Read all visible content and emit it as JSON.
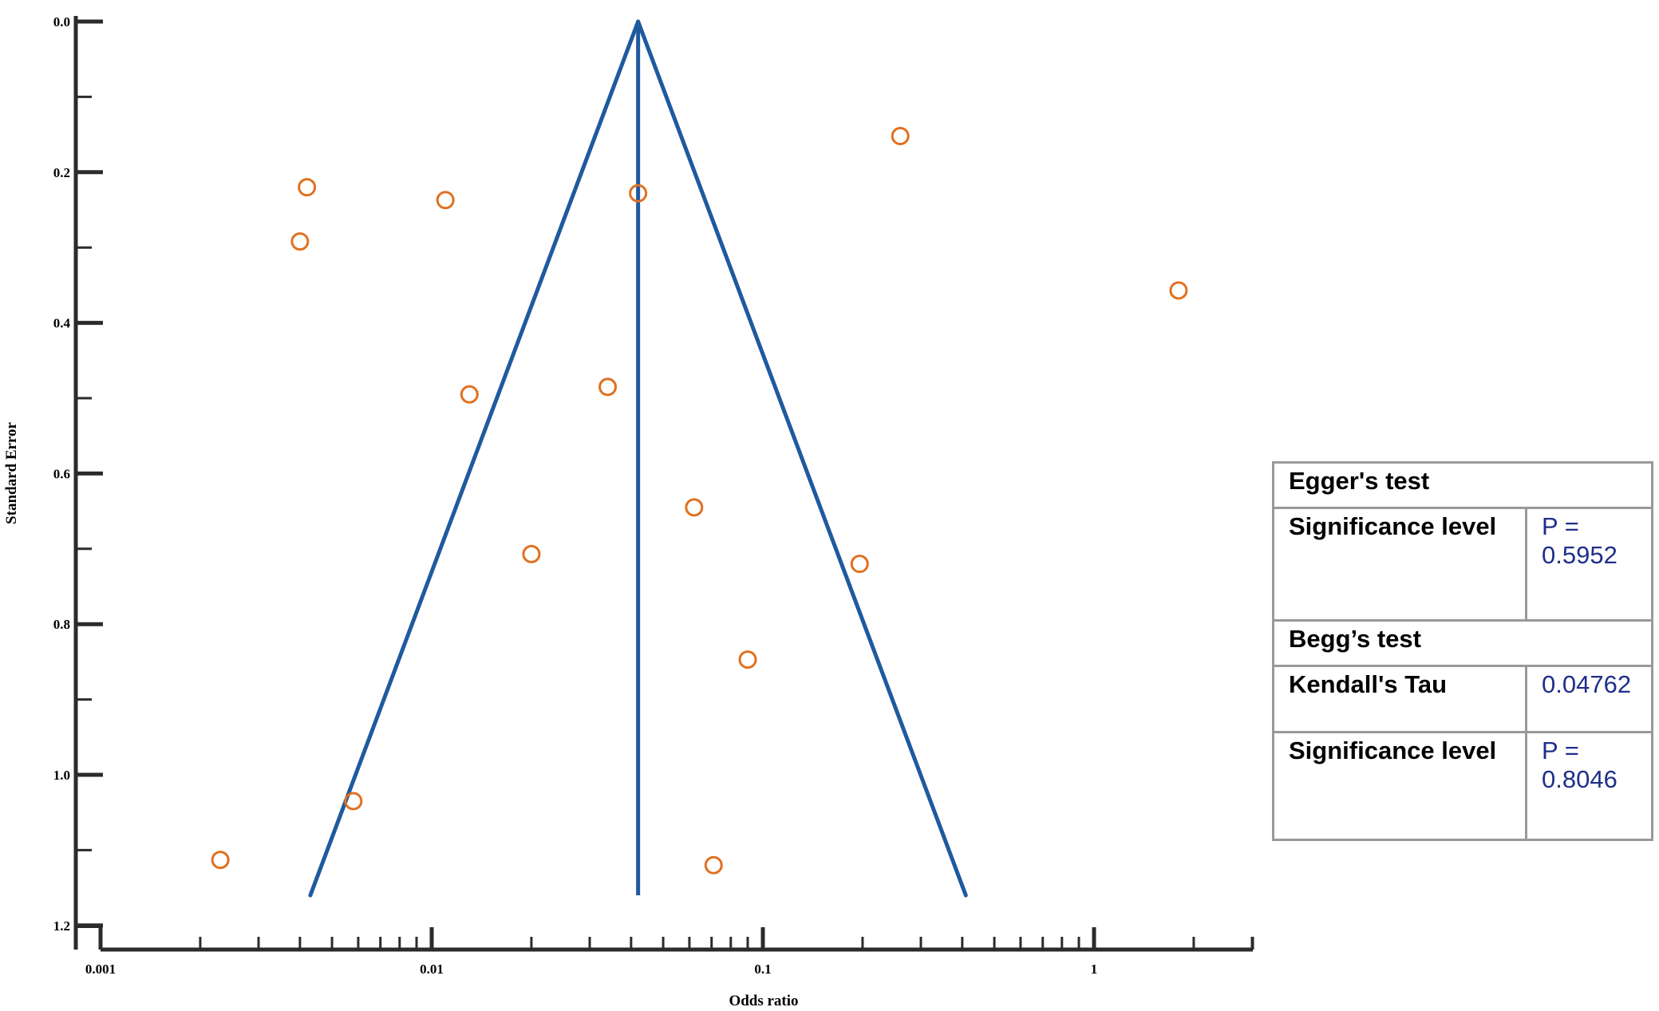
{
  "chart_data": {
    "type": "scatter",
    "xlabel": "Odds ratio",
    "ylabel": "Standard Error",
    "x_scale": "log",
    "xlim": [
      0.001,
      3
    ],
    "ylim": [
      1.2,
      0.0
    ],
    "y_inverted": true,
    "x_tick_labels": [
      "0.001",
      "0.01",
      "0.1",
      "1"
    ],
    "x_tick_values": [
      0.001,
      0.01,
      0.1,
      1
    ],
    "y_tick_labels": [
      "0.0",
      "0.2",
      "0.4",
      "0.6",
      "0.8",
      "1.0",
      "1.2"
    ],
    "y_tick_values": [
      0.0,
      0.2,
      0.4,
      0.6,
      0.8,
      1.0,
      1.2
    ],
    "funnel": {
      "pooled_or": 0.042,
      "apex_se": 0.0,
      "base_se": 1.16,
      "base_left_or": 0.0043,
      "base_right_or": 0.41
    },
    "points": [
      {
        "x": 0.0042,
        "y": 0.22
      },
      {
        "x": 0.011,
        "y": 0.237
      },
      {
        "x": 0.042,
        "y": 0.228
      },
      {
        "x": 0.26,
        "y": 0.152
      },
      {
        "x": 0.004,
        "y": 0.292
      },
      {
        "x": 1.8,
        "y": 0.357
      },
      {
        "x": 0.013,
        "y": 0.495
      },
      {
        "x": 0.034,
        "y": 0.485
      },
      {
        "x": 0.062,
        "y": 0.645
      },
      {
        "x": 0.02,
        "y": 0.707
      },
      {
        "x": 0.196,
        "y": 0.72
      },
      {
        "x": 0.09,
        "y": 0.847
      },
      {
        "x": 0.0058,
        "y": 1.035
      },
      {
        "x": 0.0023,
        "y": 1.113
      },
      {
        "x": 0.071,
        "y": 1.12
      }
    ],
    "colors": {
      "funnel": "#1f5a9e",
      "points": "#e07020",
      "axis": "#2b2b2b"
    }
  },
  "stats_table": {
    "eggers_title": "Egger's test",
    "eggers_sig_label": "Significance level",
    "eggers_sig_value_p": "P =",
    "eggers_sig_value_num": "0.5952",
    "beggs_title": "Begg’s test",
    "kendall_label": "Kendall's Tau",
    "kendall_value": "0.04762",
    "beggs_sig_label": "Significance level",
    "beggs_sig_value_p": "P =",
    "beggs_sig_value_num": "0.8046"
  }
}
